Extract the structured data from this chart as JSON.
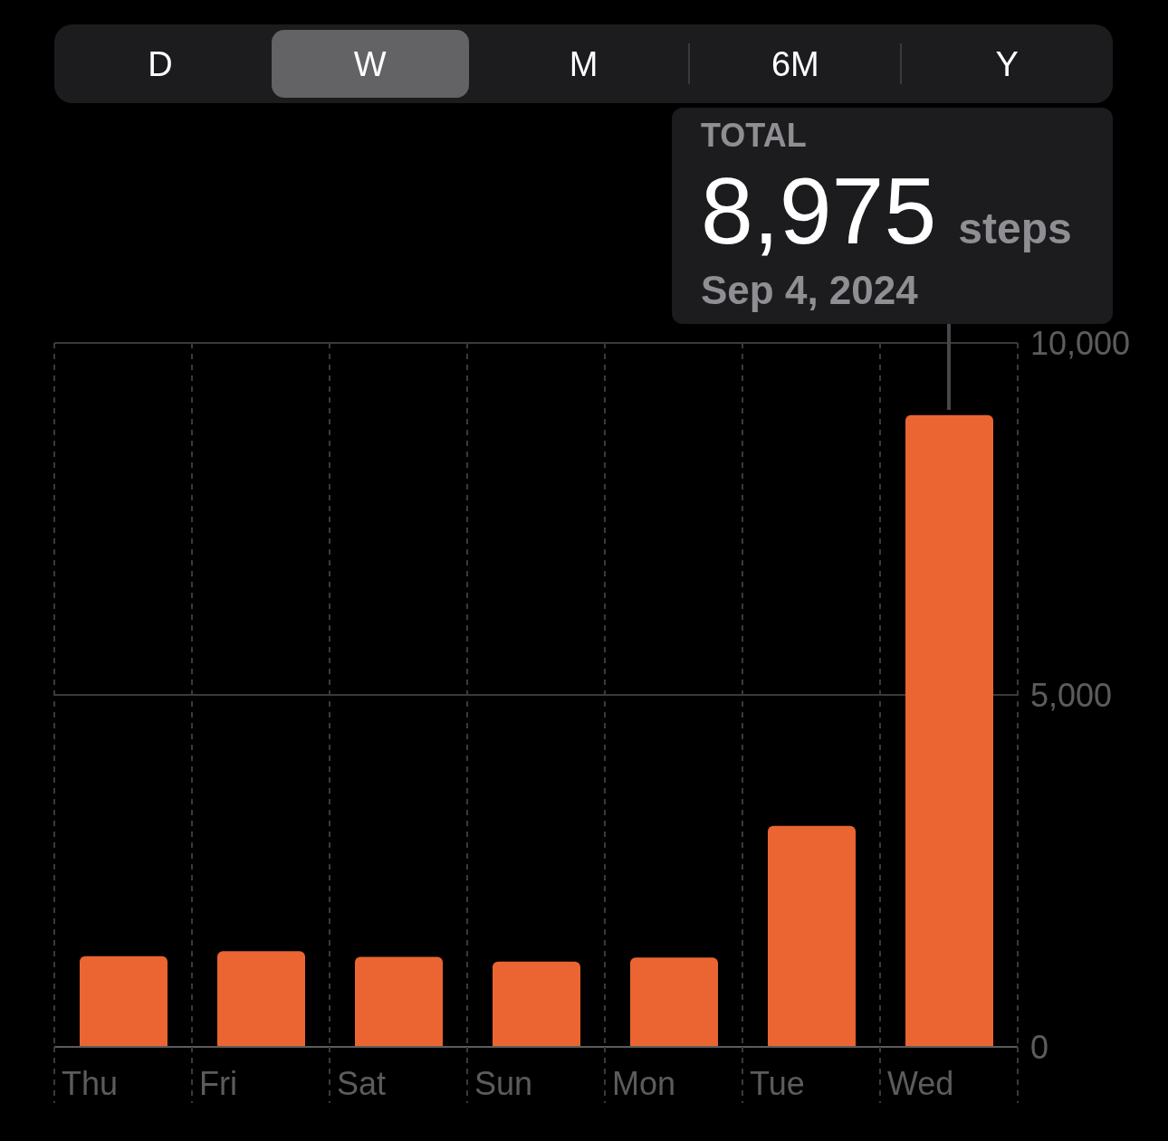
{
  "chart_data": {
    "type": "bar",
    "categories": [
      "Thu",
      "Fri",
      "Sat",
      "Sun",
      "Mon",
      "Tue",
      "Wed"
    ],
    "values": [
      1290,
      1360,
      1280,
      1210,
      1270,
      3140,
      8975
    ],
    "color": "#ea6532",
    "ylim": [
      0,
      10000
    ],
    "yticks": [
      0,
      {
        "value": 5000,
        "label": "5,000"
      },
      {
        "value": 10000,
        "label": "10,000"
      }
    ],
    "grid": true,
    "annotations": [
      "D",
      "W",
      "M",
      "6M",
      "Y",
      "TOTAL",
      {
        "text": "8,975",
        "x": "Wed",
        "y": 8975
      },
      "steps",
      "Sep 4, 2024"
    ]
  }
}
